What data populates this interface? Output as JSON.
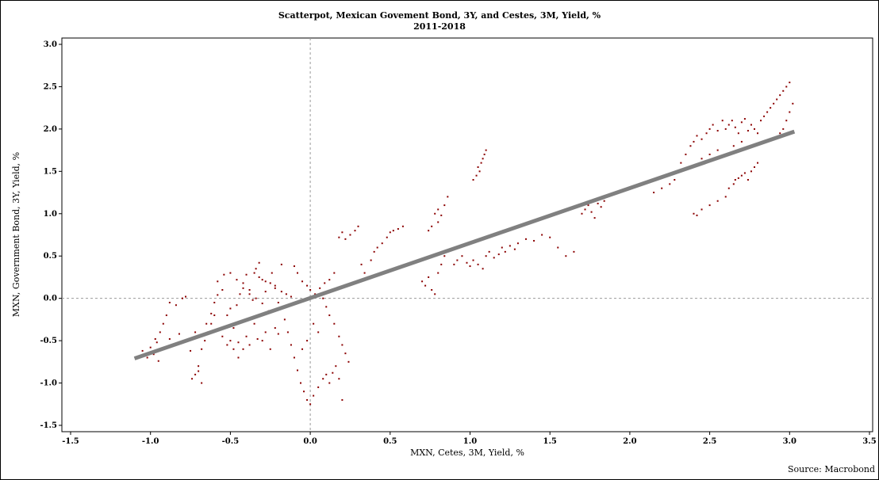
{
  "chart_data": {
    "type": "scatter",
    "title": "Scatterpot, Mexican Govement Bond, 3Y, and Cestes, 3M, Yield, %",
    "subtitle": "2011-2018",
    "xlabel": "MXN, Cetes, 3M, Yield, %",
    "ylabel": "MXN, Government Bond, 3Y, Yield, %",
    "source": "Source: Macrobond",
    "xlim": [
      -1.5,
      3.5
    ],
    "ylim": [
      -1.5,
      3.0
    ],
    "xticks": [
      "-1.5",
      "-1.0",
      "-0.5",
      "0.0",
      "0.5",
      "1.0",
      "1.5",
      "2.0",
      "2.5",
      "3.0",
      "3.5"
    ],
    "yticks": [
      "-1.5",
      "-1.0",
      "-0.5",
      "0.0",
      "0.5",
      "1.0",
      "1.5",
      "2.0",
      "2.5",
      "3.0"
    ],
    "point_color": "#8b0000",
    "trend_color": "#808080",
    "reference_lines": {
      "x": 0.0,
      "y": 0.0,
      "style": "dashed"
    },
    "grid": false,
    "trendline": {
      "x": [
        -1.1,
        3.03
      ],
      "y": [
        -0.71,
        1.97
      ]
    },
    "series": [
      {
        "points": [
          [
            -1.05,
            -0.62
          ],
          [
            -1.02,
            -0.7
          ],
          [
            -0.98,
            -0.66
          ],
          [
            -0.95,
            -0.74
          ],
          [
            -1.0,
            -0.58
          ],
          [
            -0.96,
            -0.52
          ],
          [
            -0.92,
            -0.6
          ],
          [
            -0.88,
            -0.48
          ],
          [
            -0.85,
            -0.55
          ],
          [
            -0.82,
            -0.42
          ],
          [
            -0.78,
            -0.5
          ],
          [
            -0.75,
            -0.62
          ],
          [
            -0.72,
            -0.4
          ],
          [
            -0.7,
            -0.86
          ],
          [
            -0.68,
            -1.0
          ],
          [
            -0.65,
            -0.3
          ],
          [
            -0.62,
            -0.18
          ],
          [
            -0.6,
            -0.05
          ],
          [
            -0.58,
            0.04
          ],
          [
            -0.55,
            0.1
          ],
          [
            -0.52,
            -0.2
          ],
          [
            -0.5,
            -0.12
          ],
          [
            -0.48,
            -0.35
          ],
          [
            -0.46,
            -0.08
          ],
          [
            -0.44,
            0.05
          ],
          [
            -0.42,
            0.18
          ],
          [
            -0.4,
            0.28
          ],
          [
            -0.38,
            0.1
          ],
          [
            -0.36,
            -0.02
          ],
          [
            -0.34,
            0.35
          ],
          [
            -0.32,
            0.42
          ],
          [
            -0.3,
            0.22
          ],
          [
            -0.28,
            0.08
          ],
          [
            -0.26,
            -0.15
          ],
          [
            -0.24,
            0.3
          ],
          [
            -0.22,
            0.15
          ],
          [
            -0.2,
            -0.05
          ],
          [
            -0.18,
            0.4
          ],
          [
            -0.16,
            -0.25
          ],
          [
            -0.14,
            -0.4
          ],
          [
            -0.12,
            -0.55
          ],
          [
            -0.1,
            -0.7
          ],
          [
            -0.08,
            -0.85
          ],
          [
            -0.06,
            -1.0
          ],
          [
            -0.04,
            -1.1
          ],
          [
            -0.02,
            -1.2
          ],
          [
            0.0,
            -1.25
          ],
          [
            0.02,
            -1.15
          ],
          [
            0.05,
            -1.05
          ],
          [
            0.08,
            -0.95
          ],
          [
            0.1,
            -0.9
          ],
          [
            0.12,
            -1.0
          ],
          [
            0.14,
            -0.88
          ],
          [
            0.16,
            -0.8
          ],
          [
            0.18,
            -0.95
          ],
          [
            0.2,
            -1.2
          ],
          [
            -0.48,
            -0.6
          ],
          [
            -0.45,
            -0.7
          ],
          [
            -0.52,
            -0.55
          ],
          [
            -0.4,
            -0.45
          ],
          [
            -0.35,
            -0.3
          ],
          [
            -0.3,
            -0.5
          ],
          [
            -0.25,
            -0.6
          ],
          [
            -0.2,
            -0.42
          ],
          [
            -0.78,
            0.02
          ],
          [
            -0.8,
            0.0
          ],
          [
            -0.84,
            -0.08
          ],
          [
            -0.88,
            -0.05
          ],
          [
            -0.9,
            -0.2
          ],
          [
            -0.92,
            -0.3
          ],
          [
            -0.94,
            -0.4
          ],
          [
            -0.97,
            -0.48
          ],
          [
            -0.58,
            0.2
          ],
          [
            -0.54,
            0.28
          ],
          [
            -0.5,
            0.3
          ],
          [
            -0.46,
            0.22
          ],
          [
            -0.42,
            0.12
          ],
          [
            -0.38,
            0.05
          ],
          [
            -0.34,
            0.0
          ],
          [
            -0.3,
            -0.06
          ],
          [
            -0.1,
            0.38
          ],
          [
            -0.08,
            0.3
          ],
          [
            -0.05,
            0.2
          ],
          [
            -0.02,
            0.15
          ],
          [
            0.0,
            0.1
          ],
          [
            0.03,
            0.05
          ],
          [
            0.06,
            0.12
          ],
          [
            0.09,
            0.18
          ],
          [
            0.12,
            0.22
          ],
          [
            0.15,
            0.3
          ],
          [
            0.18,
            0.72
          ],
          [
            0.2,
            0.78
          ],
          [
            0.22,
            0.7
          ],
          [
            0.25,
            0.75
          ],
          [
            0.28,
            0.8
          ],
          [
            0.3,
            0.85
          ],
          [
            0.32,
            0.4
          ],
          [
            0.34,
            0.3
          ],
          [
            0.36,
            0.25
          ],
          [
            0.38,
            0.45
          ],
          [
            0.4,
            0.55
          ],
          [
            0.42,
            0.6
          ],
          [
            0.45,
            0.65
          ],
          [
            0.48,
            0.72
          ],
          [
            0.5,
            0.78
          ],
          [
            0.52,
            0.8
          ],
          [
            0.55,
            0.82
          ],
          [
            0.58,
            0.85
          ],
          [
            0.08,
            0.0
          ],
          [
            0.1,
            -0.1
          ],
          [
            0.12,
            -0.2
          ],
          [
            0.15,
            -0.3
          ],
          [
            0.18,
            -0.45
          ],
          [
            0.2,
            -0.55
          ],
          [
            0.22,
            -0.65
          ],
          [
            0.24,
            -0.75
          ],
          [
            0.05,
            -0.4
          ],
          [
            0.02,
            -0.3
          ],
          [
            -0.02,
            -0.5
          ],
          [
            -0.05,
            -0.6
          ],
          [
            0.7,
            0.2
          ],
          [
            0.72,
            0.15
          ],
          [
            0.74,
            0.25
          ],
          [
            0.76,
            0.1
          ],
          [
            0.78,
            0.05
          ],
          [
            0.8,
            0.3
          ],
          [
            0.82,
            0.4
          ],
          [
            0.84,
            0.5
          ],
          [
            0.78,
            1.0
          ],
          [
            0.8,
            1.05
          ],
          [
            0.82,
            0.98
          ],
          [
            0.84,
            1.1
          ],
          [
            0.86,
            1.2
          ],
          [
            0.8,
            0.9
          ],
          [
            0.76,
            0.85
          ],
          [
            0.74,
            0.8
          ],
          [
            0.9,
            0.4
          ],
          [
            0.92,
            0.45
          ],
          [
            0.95,
            0.5
          ],
          [
            0.98,
            0.42
          ],
          [
            1.0,
            0.38
          ],
          [
            1.02,
            0.45
          ],
          [
            1.05,
            0.4
          ],
          [
            1.08,
            0.35
          ],
          [
            1.1,
            0.5
          ],
          [
            1.12,
            0.55
          ],
          [
            1.15,
            0.48
          ],
          [
            1.18,
            0.52
          ],
          [
            1.2,
            0.6
          ],
          [
            1.22,
            0.55
          ],
          [
            1.25,
            0.62
          ],
          [
            1.28,
            0.58
          ],
          [
            1.05,
            1.55
          ],
          [
            1.07,
            1.6
          ],
          [
            1.08,
            1.65
          ],
          [
            1.06,
            1.5
          ],
          [
            1.09,
            1.7
          ],
          [
            1.04,
            1.45
          ],
          [
            1.1,
            1.75
          ],
          [
            1.02,
            1.4
          ],
          [
            1.3,
            0.65
          ],
          [
            1.35,
            0.7
          ],
          [
            1.4,
            0.68
          ],
          [
            1.45,
            0.75
          ],
          [
            1.5,
            0.72
          ],
          [
            1.55,
            0.6
          ],
          [
            1.6,
            0.5
          ],
          [
            1.65,
            0.55
          ],
          [
            1.7,
            1.0
          ],
          [
            1.72,
            1.05
          ],
          [
            1.74,
            1.1
          ],
          [
            1.76,
            1.02
          ],
          [
            1.78,
            0.95
          ],
          [
            1.8,
            1.12
          ],
          [
            1.82,
            1.08
          ],
          [
            1.84,
            1.15
          ],
          [
            2.15,
            1.25
          ],
          [
            2.2,
            1.3
          ],
          [
            2.25,
            1.35
          ],
          [
            2.28,
            1.4
          ],
          [
            2.3,
            1.5
          ],
          [
            2.32,
            1.6
          ],
          [
            2.35,
            1.7
          ],
          [
            2.38,
            1.8
          ],
          [
            2.4,
            1.85
          ],
          [
            2.42,
            1.92
          ],
          [
            2.45,
            1.88
          ],
          [
            2.48,
            1.95
          ],
          [
            2.5,
            2.0
          ],
          [
            2.52,
            2.05
          ],
          [
            2.55,
            1.98
          ],
          [
            2.58,
            2.1
          ],
          [
            2.4,
            1.0
          ],
          [
            2.42,
            0.98
          ],
          [
            2.45,
            1.05
          ],
          [
            2.5,
            1.1
          ],
          [
            2.55,
            1.15
          ],
          [
            2.6,
            1.2
          ],
          [
            2.62,
            1.3
          ],
          [
            2.65,
            1.35
          ],
          [
            2.66,
            1.4
          ],
          [
            2.68,
            1.42
          ],
          [
            2.7,
            1.45
          ],
          [
            2.72,
            1.48
          ],
          [
            2.74,
            1.4
          ],
          [
            2.76,
            1.5
          ],
          [
            2.78,
            1.55
          ],
          [
            2.8,
            1.6
          ],
          [
            2.82,
            2.1
          ],
          [
            2.84,
            2.15
          ],
          [
            2.86,
            2.2
          ],
          [
            2.88,
            2.25
          ],
          [
            2.9,
            2.3
          ],
          [
            2.92,
            2.35
          ],
          [
            2.94,
            2.4
          ],
          [
            2.96,
            2.45
          ],
          [
            2.98,
            2.5
          ],
          [
            3.0,
            2.55
          ],
          [
            3.02,
            2.3
          ],
          [
            3.0,
            2.2
          ],
          [
            2.98,
            2.1
          ],
          [
            2.96,
            2.0
          ],
          [
            2.94,
            1.95
          ],
          [
            2.92,
            1.9
          ],
          [
            2.6,
            2.0
          ],
          [
            2.62,
            2.05
          ],
          [
            2.64,
            2.1
          ],
          [
            2.66,
            2.02
          ],
          [
            2.68,
            1.95
          ],
          [
            2.7,
            2.08
          ],
          [
            2.72,
            2.12
          ],
          [
            2.74,
            1.98
          ],
          [
            2.76,
            2.05
          ],
          [
            2.78,
            2.0
          ],
          [
            2.8,
            1.95
          ],
          [
            2.7,
            1.85
          ],
          [
            2.65,
            1.8
          ],
          [
            2.55,
            1.75
          ],
          [
            2.5,
            1.7
          ],
          [
            2.45,
            1.65
          ],
          [
            -0.7,
            -0.8
          ],
          [
            -0.72,
            -0.9
          ],
          [
            -0.74,
            -0.95
          ],
          [
            -0.68,
            -0.6
          ],
          [
            -0.66,
            -0.5
          ],
          [
            -0.64,
            -0.4
          ],
          [
            -0.62,
            -0.3
          ],
          [
            -0.6,
            -0.2
          ],
          [
            -0.55,
            -0.45
          ],
          [
            -0.5,
            -0.5
          ],
          [
            -0.45,
            -0.52
          ],
          [
            -0.42,
            -0.6
          ],
          [
            -0.38,
            -0.55
          ],
          [
            -0.33,
            -0.48
          ],
          [
            -0.28,
            -0.4
          ],
          [
            -0.22,
            -0.35
          ],
          [
            -0.35,
            0.3
          ],
          [
            -0.32,
            0.25
          ],
          [
            -0.28,
            0.2
          ],
          [
            -0.25,
            0.18
          ],
          [
            -0.22,
            0.12
          ],
          [
            -0.18,
            0.08
          ],
          [
            -0.15,
            0.05
          ],
          [
            -0.12,
            0.02
          ]
        ]
      }
    ]
  }
}
